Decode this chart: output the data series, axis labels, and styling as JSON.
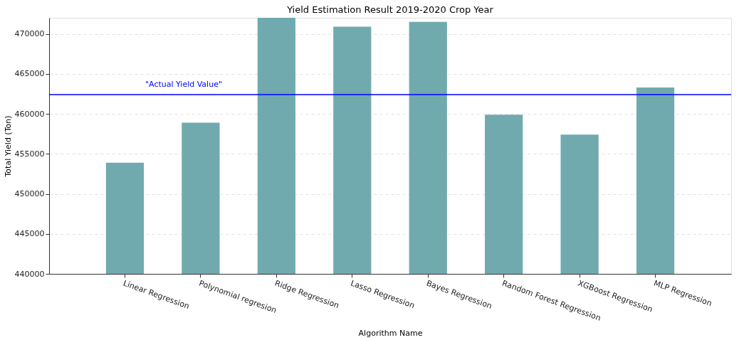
{
  "chart_data": {
    "type": "bar",
    "title": "Yield Estimation Result 2019-2020 Crop Year",
    "xlabel": "Algorithm Name",
    "ylabel": "Total Yield (Ton)",
    "categories": [
      "Linear Regression",
      "Polynomial regresion",
      "Ridge Regression",
      "Lasso Regression",
      "Bayes Regression",
      "Random Forest Regression",
      "XGBoost Regression",
      "MLP Regression"
    ],
    "values": [
      453900,
      458900,
      472000,
      470900,
      471500,
      459900,
      457400,
      463300
    ],
    "color": "#70aaae",
    "ylim": [
      440000,
      472000
    ],
    "yticks": [
      440000,
      445000,
      450000,
      455000,
      460000,
      465000,
      470000
    ],
    "grid": "y",
    "ref_lines": [
      {
        "axis": "y",
        "value": 462400,
        "label": "\"Actual Yield Value\"",
        "color": "#0000ff"
      }
    ]
  }
}
